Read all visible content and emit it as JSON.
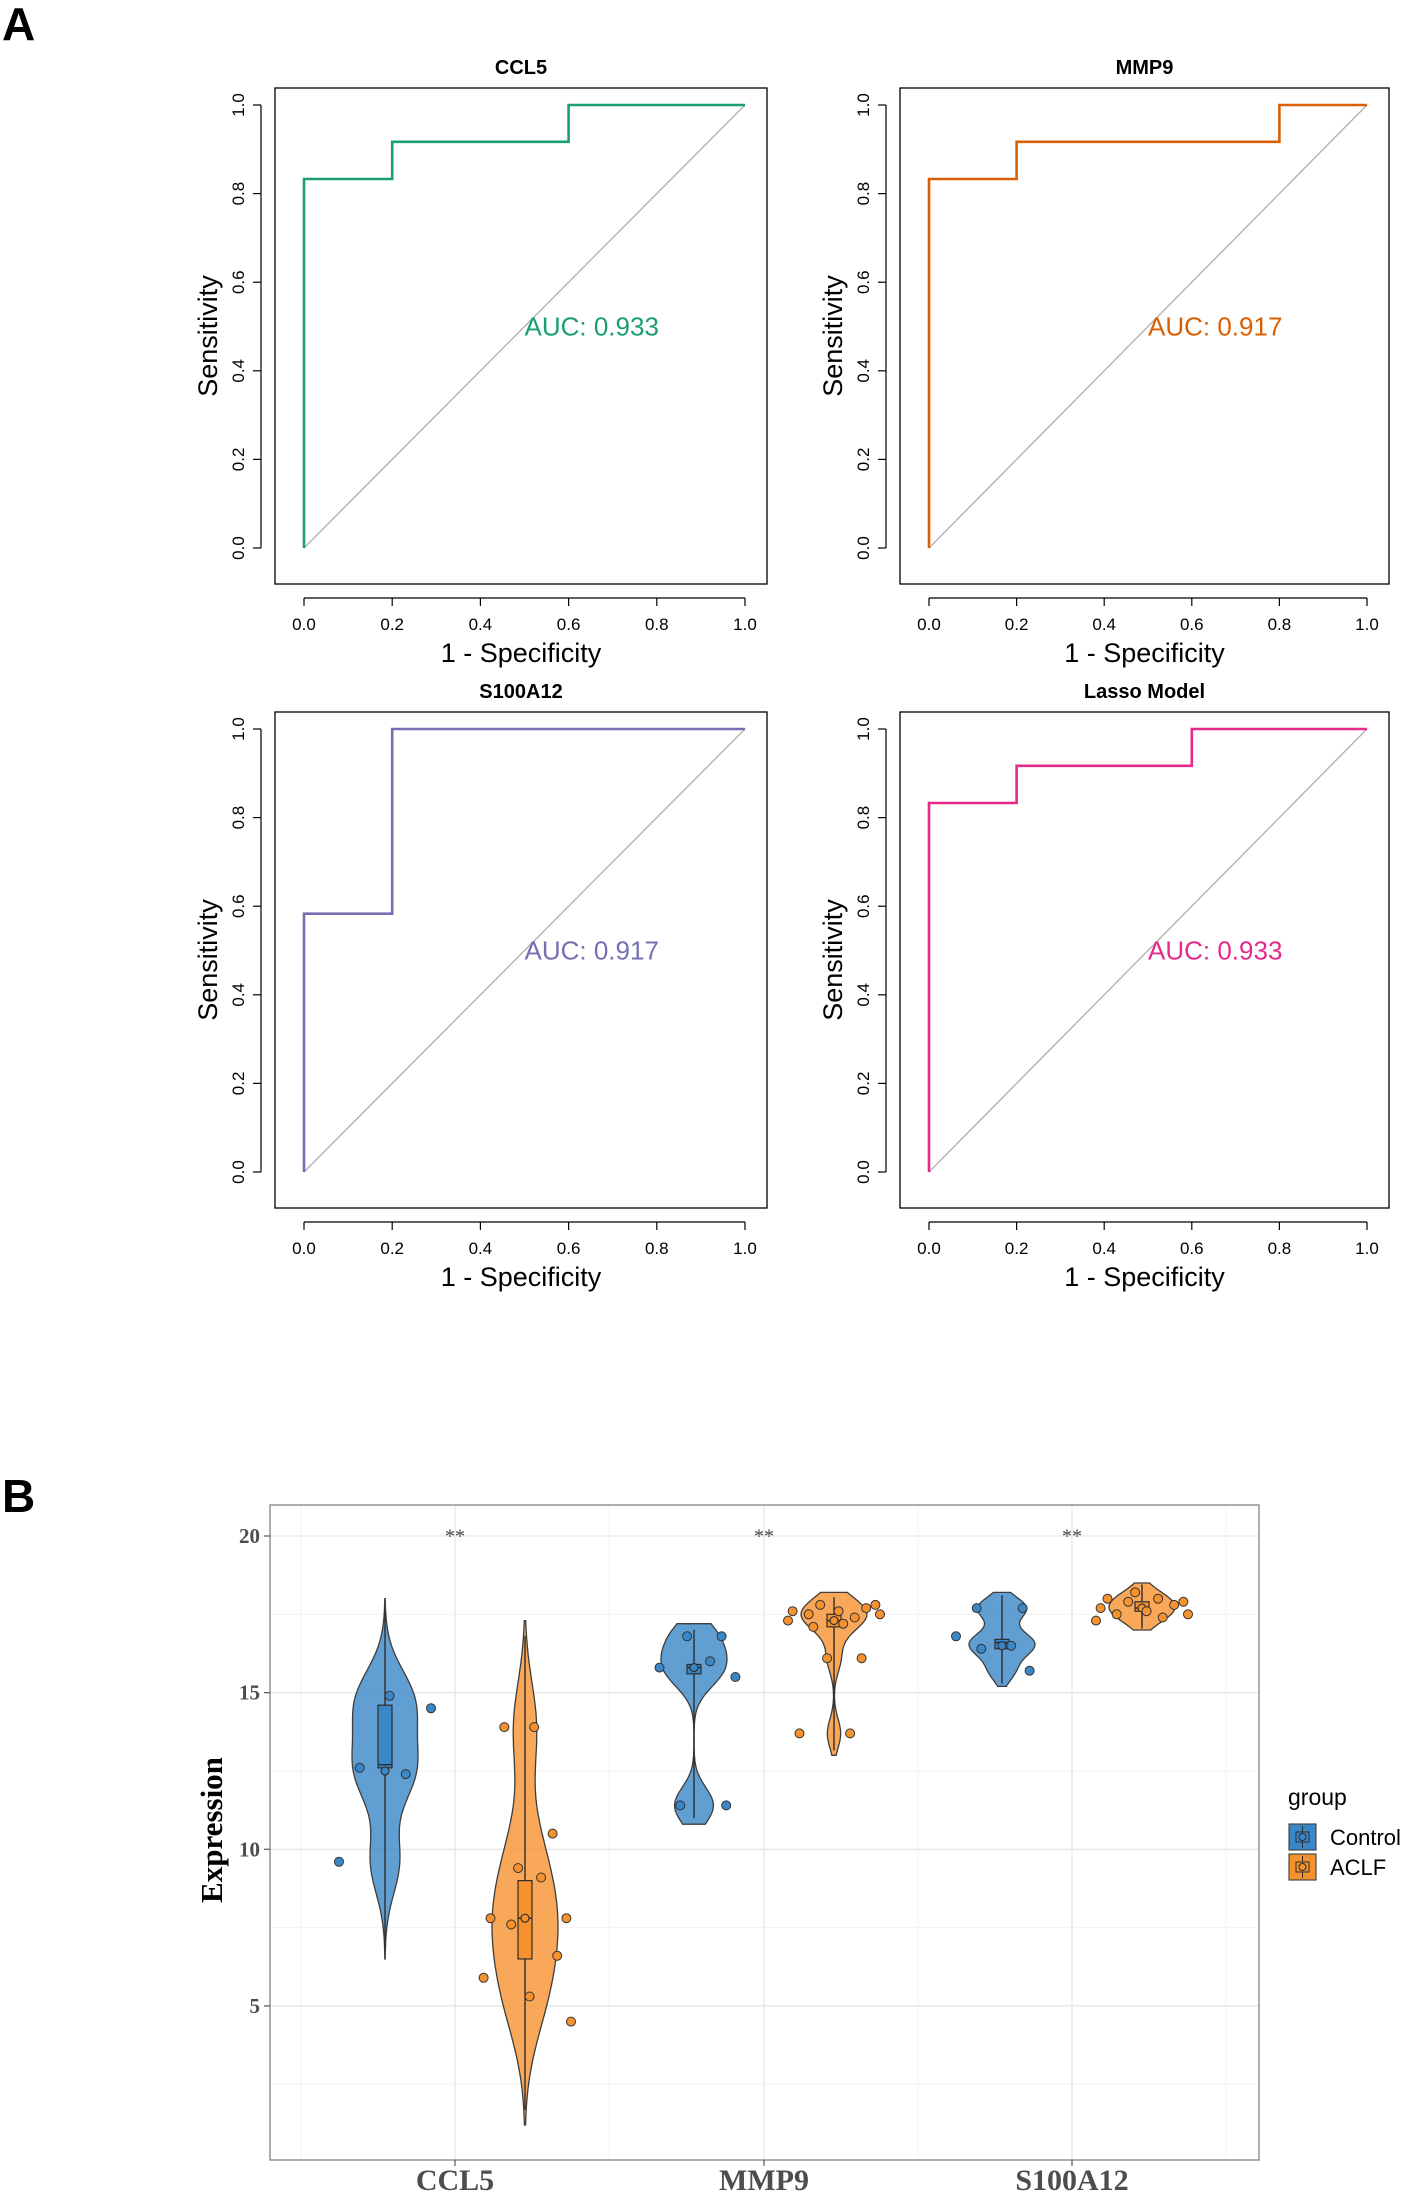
{
  "panels": {
    "a_label": "A",
    "b_label": "B"
  },
  "chart_data": [
    {
      "type": "line",
      "title": "CCL5",
      "xlabel": "1 - Specificity",
      "ylabel": "Sensitivity",
      "xlim": [
        0,
        1
      ],
      "ylim": [
        0,
        1
      ],
      "xticks": [
        "0.0",
        "0.2",
        "0.4",
        "0.6",
        "0.8",
        "1.0"
      ],
      "yticks": [
        "0.0",
        "0.2",
        "0.4",
        "0.6",
        "0.8",
        "1.0"
      ],
      "color": "#1b9e77",
      "auc_label": "AUC: 0.933",
      "x": [
        0,
        0,
        0.2,
        0.2,
        0.6,
        0.6,
        1
      ],
      "y": [
        0,
        0.833,
        0.833,
        0.917,
        0.917,
        1,
        1
      ]
    },
    {
      "type": "line",
      "title": "MMP9",
      "xlabel": "1 - Specificity",
      "ylabel": "Sensitivity",
      "xlim": [
        0,
        1
      ],
      "ylim": [
        0,
        1
      ],
      "xticks": [
        "0.0",
        "0.2",
        "0.4",
        "0.6",
        "0.8",
        "1.0"
      ],
      "yticks": [
        "0.0",
        "0.2",
        "0.4",
        "0.6",
        "0.8",
        "1.0"
      ],
      "color": "#d95f02",
      "auc_label": "AUC: 0.917",
      "x": [
        0,
        0,
        0.2,
        0.2,
        0.8,
        0.8,
        1
      ],
      "y": [
        0,
        0.833,
        0.833,
        0.917,
        0.917,
        1,
        1
      ]
    },
    {
      "type": "line",
      "title": "S100A12",
      "xlabel": "1 - Specificity",
      "ylabel": "Sensitivity",
      "xlim": [
        0,
        1
      ],
      "ylim": [
        0,
        1
      ],
      "xticks": [
        "0.0",
        "0.2",
        "0.4",
        "0.6",
        "0.8",
        "1.0"
      ],
      "yticks": [
        "0.0",
        "0.2",
        "0.4",
        "0.6",
        "0.8",
        "1.0"
      ],
      "color": "#7570b3",
      "auc_label": "AUC: 0.917",
      "x": [
        0,
        0,
        0.2,
        0.2,
        1
      ],
      "y": [
        0,
        0.583,
        0.583,
        1,
        1
      ]
    },
    {
      "type": "line",
      "title": "Lasso Model",
      "xlabel": "1 - Specificity",
      "ylabel": "Sensitivity",
      "xlim": [
        0,
        1
      ],
      "ylim": [
        0,
        1
      ],
      "xticks": [
        "0.0",
        "0.2",
        "0.4",
        "0.6",
        "0.8",
        "1.0"
      ],
      "yticks": [
        "0.0",
        "0.2",
        "0.4",
        "0.6",
        "0.8",
        "1.0"
      ],
      "color": "#e7298a",
      "auc_label": "AUC: 0.933",
      "x": [
        0,
        0,
        0.2,
        0.2,
        0.6,
        0.6,
        1
      ],
      "y": [
        0,
        0.833,
        0.833,
        0.917,
        0.917,
        1,
        1
      ]
    },
    {
      "type": "violin",
      "title": "",
      "xlabel": "",
      "ylabel": "Expression",
      "ylim": [
        0.5,
        21
      ],
      "yticks": [
        5,
        10,
        15,
        20
      ],
      "categories": [
        "CCL5",
        "MMP9",
        "S100A12"
      ],
      "significance": [
        "**",
        "**",
        "**"
      ],
      "legend": {
        "title": "group",
        "entries": [
          {
            "name": "Control",
            "color": "#3a87c8"
          },
          {
            "name": "ACLF",
            "color": "#f6922e"
          }
        ]
      },
      "groups": [
        {
          "category": "CCL5",
          "group": "Control",
          "min": 6.5,
          "max": 18.0,
          "q1": 12.6,
          "median": 12.7,
          "q3": 14.6,
          "mean": 12.5,
          "points": [
            9.6,
            12.4,
            12.6,
            14.5,
            14.9
          ]
        },
        {
          "category": "CCL5",
          "group": "ACLF",
          "min": 1.2,
          "max": 17.3,
          "q1": 6.5,
          "median": 7.8,
          "q3": 9.0,
          "mean": 7.8,
          "points": [
            4.5,
            5.3,
            5.9,
            6.6,
            7.6,
            7.8,
            7.8,
            9.1,
            9.4,
            10.5,
            13.9,
            13.9
          ]
        },
        {
          "category": "MMP9",
          "group": "Control",
          "min": 10.8,
          "max": 17.2,
          "q1": 15.6,
          "median": 15.8,
          "q3": 15.9,
          "mean": 15.8,
          "points": [
            11.4,
            11.4,
            15.5,
            15.8,
            16.0,
            16.8,
            16.8
          ]
        },
        {
          "category": "MMP9",
          "group": "ACLF",
          "min": 13.0,
          "max": 18.2,
          "q1": 17.1,
          "median": 17.3,
          "q3": 17.5,
          "mean": 17.3,
          "points": [
            13.7,
            13.7,
            16.1,
            16.1,
            17.1,
            17.2,
            17.3,
            17.4,
            17.5,
            17.5,
            17.6,
            17.6,
            17.7,
            17.8,
            17.8
          ]
        },
        {
          "category": "S100A12",
          "group": "Control",
          "min": 15.2,
          "max": 18.2,
          "q1": 16.4,
          "median": 16.6,
          "q3": 16.7,
          "mean": 16.5,
          "points": [
            15.7,
            16.4,
            16.5,
            16.8,
            17.7,
            17.7
          ]
        },
        {
          "category": "S100A12",
          "group": "ACLF",
          "min": 17.0,
          "max": 18.5,
          "q1": 17.6,
          "median": 17.7,
          "q3": 17.9,
          "mean": 17.7,
          "points": [
            17.3,
            17.4,
            17.5,
            17.5,
            17.6,
            17.7,
            17.8,
            17.9,
            17.9,
            18.0,
            18.0,
            18.2
          ]
        }
      ]
    }
  ]
}
